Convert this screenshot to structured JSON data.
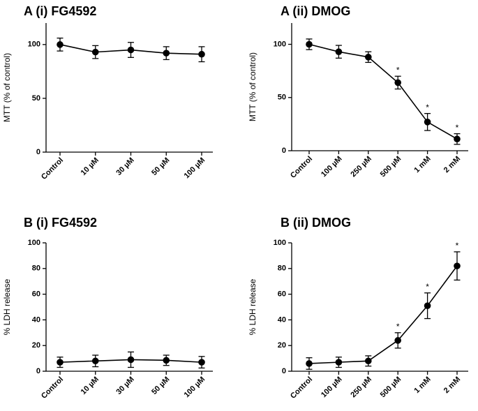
{
  "chart_data": [
    {
      "type": "line",
      "title": "A (i) FG4592",
      "ylabel": "MTT (% of control)",
      "ylim": [
        0,
        120
      ],
      "yticks": [
        "0",
        "50",
        "100"
      ],
      "categories": [
        "Control",
        "10 µM",
        "30 µM",
        "50 µM",
        "100 µM"
      ],
      "values": [
        100,
        93,
        95,
        92,
        91
      ],
      "errors": [
        6,
        6,
        7,
        6,
        7
      ],
      "significant": [
        false,
        false,
        false,
        false,
        false
      ],
      "marker": "*"
    },
    {
      "type": "line",
      "title": "A (ii) DMOG",
      "ylabel": "MTT (% of control)",
      "ylim": [
        0,
        120
      ],
      "yticks": [
        "0",
        "50",
        "100"
      ],
      "categories": [
        "Control",
        "100 µM",
        "250 µM",
        "500 µM",
        "1 mM",
        "2 mM"
      ],
      "values": [
        100,
        93,
        88,
        64,
        27,
        11
      ],
      "errors": [
        5,
        6,
        5,
        6,
        8,
        5
      ],
      "significant": [
        false,
        false,
        false,
        true,
        true,
        true
      ],
      "marker": "*"
    },
    {
      "type": "line",
      "title": "B (i) FG4592",
      "ylabel": "% LDH release",
      "ylim": [
        0,
        100
      ],
      "yticks": [
        "0",
        "20",
        "40",
        "60",
        "80",
        "100"
      ],
      "categories": [
        "Control",
        "10 µM",
        "30 µM",
        "50 µM",
        "100 µM"
      ],
      "values": [
        7,
        8,
        9,
        8.5,
        7
      ],
      "errors": [
        4,
        4.5,
        6,
        4,
        4.5
      ],
      "significant": [
        false,
        false,
        false,
        false,
        false
      ],
      "marker": "*"
    },
    {
      "type": "line",
      "title": "B (ii) DMOG",
      "ylabel": "% LDH release",
      "ylim": [
        0,
        100
      ],
      "yticks": [
        "0",
        "20",
        "40",
        "60",
        "80",
        "100"
      ],
      "categories": [
        "Control",
        "100 µM",
        "250 µM",
        "500 µM",
        "1 mM",
        "2 mM"
      ],
      "values": [
        6,
        7,
        8,
        24,
        51,
        82
      ],
      "errors": [
        4.5,
        4,
        4,
        6,
        10,
        11
      ],
      "significant": [
        false,
        false,
        false,
        true,
        true,
        true
      ],
      "marker": "*"
    }
  ]
}
